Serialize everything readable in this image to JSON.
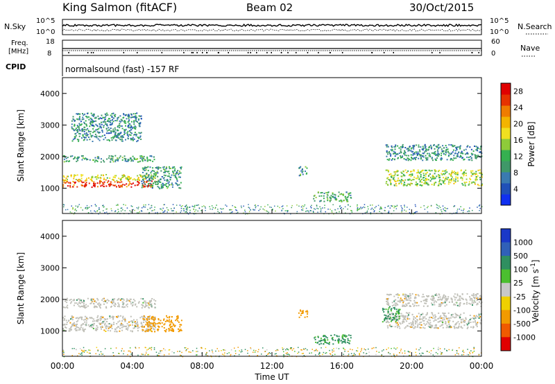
{
  "header": {
    "station": "King Salmon (fitACF)",
    "beam": "Beam 02",
    "date": "30/Oct/2015"
  },
  "colors": {
    "power_scale": [
      "#1030f0",
      "#2050b8",
      "#3a7ab0",
      "#3f9868",
      "#35b050",
      "#8ecb3a",
      "#f0e020",
      "#f3b400",
      "#ef7c00",
      "#e63200",
      "#e00000"
    ],
    "velocity_scale": [
      "#1a38c8",
      "#3060b8",
      "#2f8f60",
      "#4bbf2f",
      "#c8c8c8",
      "#efd000",
      "#f29a00",
      "#f05a00",
      "#e00000"
    ],
    "ground_scatter": "#c0c0b8",
    "frame": "#000000"
  },
  "chart_data": [
    {
      "type": "line",
      "name": "noise-panel",
      "left_label": "N.Sky",
      "right_label": "N.Search",
      "left_ticks": [
        "10^5",
        "10^0"
      ],
      "right_ticks": [
        "10^5",
        "10^0"
      ]
    },
    {
      "type": "line",
      "name": "frequency-panel",
      "left_label_top": "Freq.",
      "left_label_bottom": "[MHz]",
      "right_label": "Nave",
      "left_ticks": [
        18,
        8
      ],
      "right_ticks": [
        60,
        0
      ]
    },
    {
      "type": "table",
      "name": "cpid-panel",
      "label": "CPID",
      "text": "normalsound (fast) -157 RF"
    },
    {
      "type": "heatmap",
      "name": "power-panel",
      "ylabel": "Slant Range [km]",
      "ylim": [
        200,
        4500
      ],
      "yticks": [
        1000,
        2000,
        3000,
        4000
      ],
      "xlim": [
        0,
        24
      ],
      "colorbar": {
        "label": "Power [dB]",
        "ticks": [
          4,
          8,
          12,
          16,
          20,
          24,
          28
        ],
        "range": [
          0,
          30
        ]
      },
      "features": [
        {
          "t0": 0.0,
          "t1": 5.3,
          "range_start_km": 1050,
          "range_end_km": 1250,
          "level_db": 27
        },
        {
          "t0": 0.0,
          "t1": 5.3,
          "range_start_km": 1250,
          "range_end_km": 1450,
          "level_db": 18
        },
        {
          "t0": 0.0,
          "t1": 5.3,
          "range_start_km": 1850,
          "range_end_km": 2050,
          "level_db": 10
        },
        {
          "t0": 0.5,
          "t1": 4.5,
          "range_start_km": 2500,
          "range_end_km": 3400,
          "level_db": 8
        },
        {
          "t0": 4.5,
          "t1": 6.8,
          "range_start_km": 1000,
          "range_end_km": 1700,
          "level_db": 9
        },
        {
          "t0": 13.5,
          "t1": 14.0,
          "range_start_km": 1400,
          "range_end_km": 1700,
          "level_db": 9
        },
        {
          "t0": 14.3,
          "t1": 16.5,
          "range_start_km": 600,
          "range_end_km": 900,
          "level_db": 11
        },
        {
          "t0": 18.5,
          "t1": 24.0,
          "range_start_km": 1100,
          "range_end_km": 1600,
          "level_db": 15
        },
        {
          "t0": 18.5,
          "t1": 24.0,
          "range_start_km": 1900,
          "range_end_km": 2400,
          "level_db": 8
        }
      ]
    },
    {
      "type": "heatmap",
      "name": "velocity-panel",
      "ylabel": "Slant Range [km]",
      "xlabel": "Time UT",
      "ylim": [
        200,
        4500
      ],
      "yticks": [
        1000,
        2000,
        3000,
        4000
      ],
      "xlim": [
        0,
        24
      ],
      "xticks": [
        "00:00",
        "04:00",
        "08:00",
        "12:00",
        "16:00",
        "20:00",
        "00:00"
      ],
      "colorbar": {
        "label": "Velocity [m s",
        "label_superscript": "-1",
        "label_end": "]",
        "ticks": [
          "1000",
          "500",
          "100",
          "25",
          "-25",
          "-100",
          "-500",
          "-1000"
        ]
      },
      "features": [
        {
          "t0": 0.0,
          "t1": 5.3,
          "range_start_km": 1000,
          "range_end_km": 1500,
          "kind": "ground"
        },
        {
          "t0": 0.0,
          "t1": 5.3,
          "range_start_km": 1750,
          "range_end_km": 2050,
          "kind": "ground"
        },
        {
          "t0": 4.5,
          "t1": 6.8,
          "range_start_km": 1000,
          "range_end_km": 1500,
          "velocity_ms": -300
        },
        {
          "t0": 13.5,
          "t1": 14.0,
          "range_start_km": 1400,
          "range_end_km": 1700,
          "velocity_ms": -200
        },
        {
          "t0": 14.3,
          "t1": 16.5,
          "range_start_km": 600,
          "range_end_km": 900,
          "velocity_ms": 150
        },
        {
          "t0": 18.5,
          "t1": 24.0,
          "range_start_km": 1100,
          "range_end_km": 1600,
          "kind": "ground"
        },
        {
          "t0": 18.5,
          "t1": 24.0,
          "range_start_km": 1800,
          "range_end_km": 2200,
          "kind": "ground"
        },
        {
          "t0": 18.3,
          "t1": 19.3,
          "range_start_km": 1300,
          "range_end_km": 1800,
          "velocity_ms": 120
        }
      ]
    }
  ]
}
